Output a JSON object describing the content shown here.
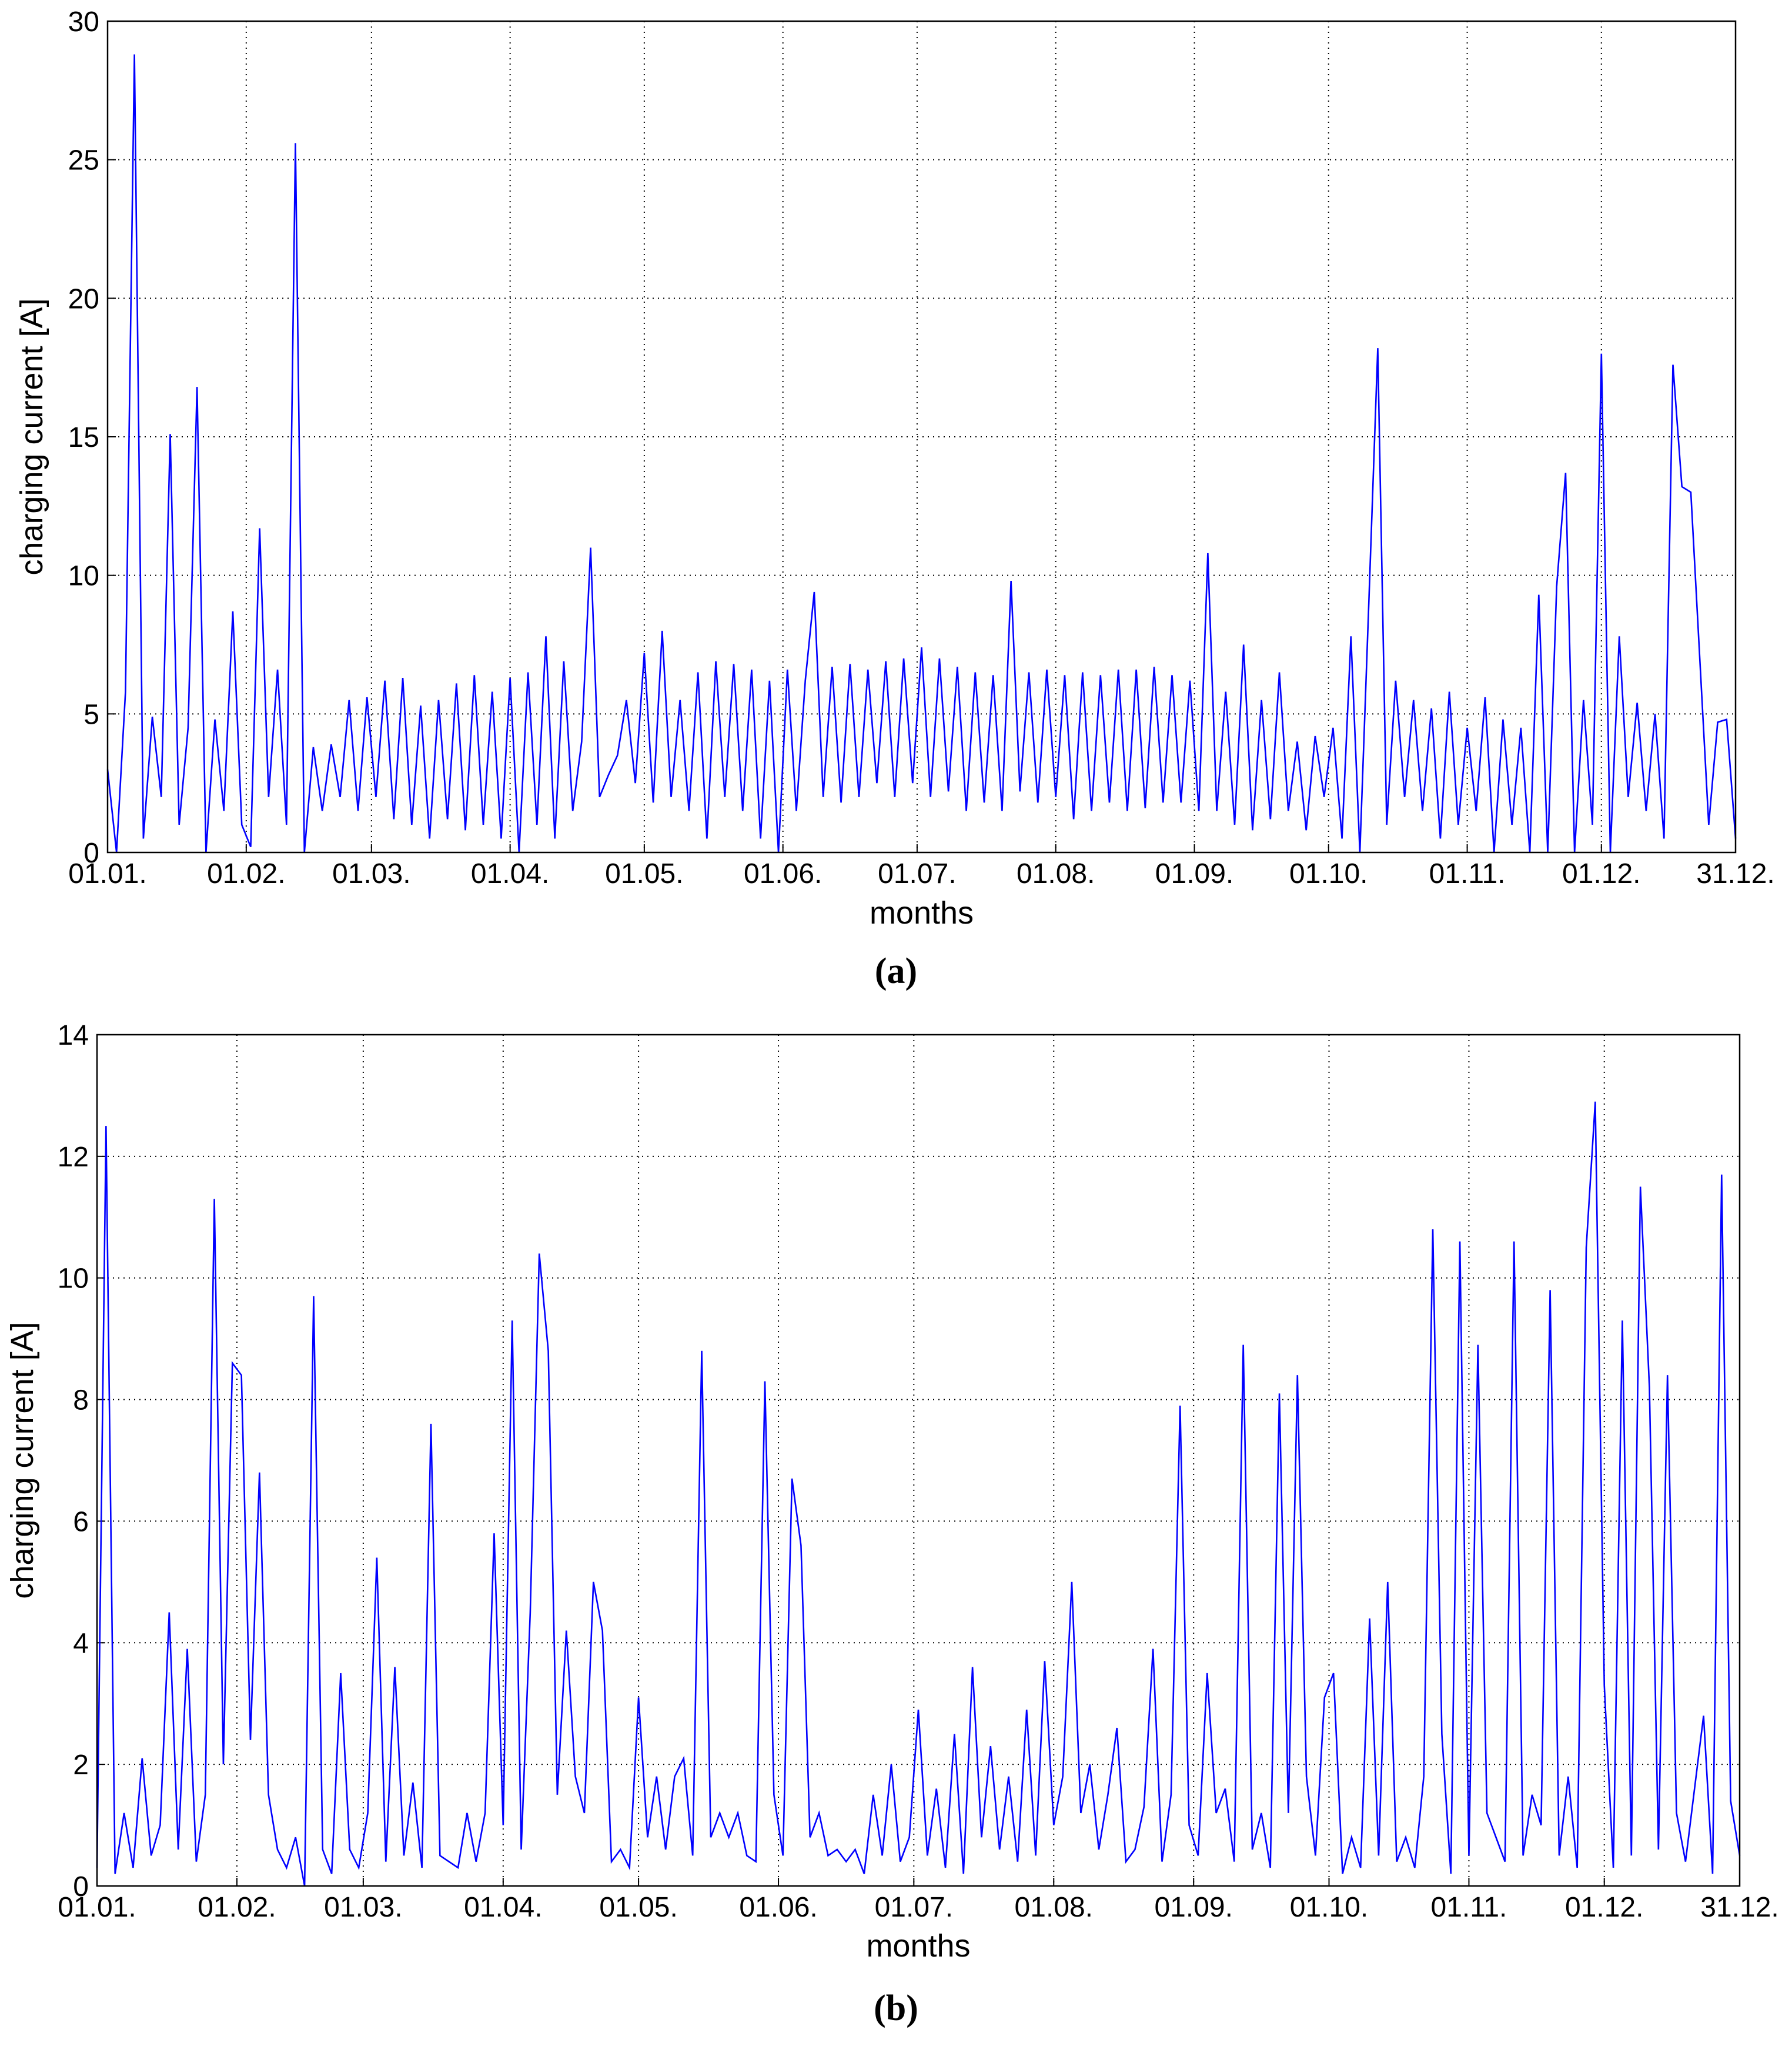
{
  "chart_data": [
    {
      "type": "line",
      "caption": "(a)",
      "xlabel": "months",
      "ylabel": "charging current [A]",
      "grid": true,
      "color": "#0000ff",
      "xlim": [
        0,
        364
      ],
      "xticks": [
        {
          "value": 0,
          "label": "01.01."
        },
        {
          "value": 31,
          "label": "01.02."
        },
        {
          "value": 59,
          "label": "01.03."
        },
        {
          "value": 90,
          "label": "01.04."
        },
        {
          "value": 120,
          "label": "01.05."
        },
        {
          "value": 151,
          "label": "01.06."
        },
        {
          "value": 181,
          "label": "01.07."
        },
        {
          "value": 212,
          "label": "01.08."
        },
        {
          "value": 243,
          "label": "01.09."
        },
        {
          "value": 273,
          "label": "01.10."
        },
        {
          "value": 304,
          "label": "01.11."
        },
        {
          "value": 334,
          "label": "01.12."
        },
        {
          "value": 364,
          "label": "31.12."
        }
      ],
      "ylim": [
        0,
        30
      ],
      "yticks": [
        0,
        5,
        10,
        15,
        20,
        25,
        30
      ],
      "x": [
        0,
        2,
        4,
        6,
        8,
        10,
        12,
        14,
        16,
        18,
        20,
        22,
        24,
        26,
        28,
        30,
        32,
        34,
        36,
        38,
        40,
        42,
        44,
        46,
        48,
        50,
        52,
        54,
        56,
        58,
        60,
        62,
        64,
        66,
        68,
        70,
        72,
        74,
        76,
        78,
        80,
        82,
        84,
        86,
        88,
        90,
        92,
        94,
        96,
        98,
        100,
        102,
        104,
        106,
        108,
        110,
        112,
        114,
        116,
        118,
        120,
        122,
        124,
        126,
        128,
        130,
        132,
        134,
        136,
        138,
        140,
        142,
        144,
        146,
        148,
        150,
        152,
        154,
        156,
        158,
        160,
        162,
        164,
        166,
        168,
        170,
        172,
        174,
        176,
        178,
        180,
        182,
        184,
        186,
        188,
        190,
        192,
        194,
        196,
        198,
        200,
        202,
        204,
        206,
        208,
        210,
        212,
        214,
        216,
        218,
        220,
        222,
        224,
        226,
        228,
        230,
        232,
        234,
        236,
        238,
        240,
        242,
        244,
        246,
        248,
        250,
        252,
        254,
        256,
        258,
        260,
        262,
        264,
        266,
        268,
        270,
        272,
        274,
        276,
        278,
        280,
        282,
        284,
        286,
        288,
        290,
        292,
        294,
        296,
        298,
        300,
        302,
        304,
        306,
        308,
        310,
        312,
        314,
        316,
        318,
        320,
        322,
        324,
        326,
        328,
        330,
        332,
        334,
        336,
        338,
        340,
        342,
        344,
        346,
        348,
        350,
        352,
        354,
        356,
        358,
        360,
        362,
        364
      ],
      "values": [
        3,
        0,
        5.8,
        28.8,
        0.5,
        4.9,
        2,
        15.1,
        1,
        4.5,
        16.8,
        0,
        4.8,
        1.5,
        8.7,
        1,
        0.2,
        11.7,
        2,
        6.6,
        1,
        25.6,
        0,
        3.8,
        1.5,
        3.9,
        2,
        5.5,
        1.5,
        5.6,
        2,
        6.2,
        1.2,
        6.3,
        1,
        5.3,
        0.5,
        5.5,
        1.2,
        6.1,
        0.8,
        6.4,
        1,
        5.8,
        0.5,
        6.3,
        0,
        6.5,
        1,
        7.8,
        0.5,
        6.9,
        1.5,
        4,
        11,
        2,
        2.8,
        3.5,
        5.5,
        2.5,
        7.2,
        1.8,
        8,
        2,
        5.5,
        1.5,
        6.5,
        0.5,
        6.9,
        2,
        6.8,
        1.5,
        6.6,
        0.5,
        6.2,
        0,
        6.6,
        1.5,
        6.2,
        9.4,
        2,
        6.7,
        1.8,
        6.8,
        2,
        6.6,
        2.5,
        6.9,
        2,
        7,
        2.5,
        7.4,
        2,
        7,
        2.2,
        6.7,
        1.5,
        6.5,
        1.8,
        6.4,
        1.5,
        9.8,
        2.2,
        6.5,
        1.8,
        6.6,
        2,
        6.4,
        1.2,
        6.5,
        1.5,
        6.4,
        1.8,
        6.6,
        1.5,
        6.6,
        1.6,
        6.7,
        1.8,
        6.4,
        1.8,
        6.2,
        1.5,
        10.8,
        1.5,
        5.8,
        1,
        7.5,
        0.8,
        5.5,
        1.2,
        6.5,
        1.5,
        4,
        0.8,
        4.2,
        2,
        4.5,
        0.5,
        7.8,
        0,
        9,
        18.2,
        1,
        6.2,
        2,
        5.5,
        1.5,
        5.2,
        0.5,
        5.8,
        1,
        4.5,
        1.5,
        5.6,
        0,
        4.8,
        1,
        4.5,
        0,
        9.3,
        0,
        9.6,
        13.7,
        0,
        5.5,
        1,
        18,
        0,
        7.8,
        2,
        5.4,
        1.5,
        5,
        0.5,
        17.6,
        13.2,
        13,
        7,
        1,
        4.7,
        4.8,
        0.5
      ]
    },
    {
      "type": "line",
      "caption": "(b)",
      "xlabel": "months",
      "ylabel": "charging current [A]",
      "grid": true,
      "color": "#0000ff",
      "xlim": [
        0,
        364
      ],
      "xticks": [
        {
          "value": 0,
          "label": "01.01."
        },
        {
          "value": 31,
          "label": "01.02."
        },
        {
          "value": 59,
          "label": "01.03."
        },
        {
          "value": 90,
          "label": "01.04."
        },
        {
          "value": 120,
          "label": "01.05."
        },
        {
          "value": 151,
          "label": "01.06."
        },
        {
          "value": 181,
          "label": "01.07."
        },
        {
          "value": 212,
          "label": "01.08."
        },
        {
          "value": 243,
          "label": "01.09."
        },
        {
          "value": 273,
          "label": "01.10."
        },
        {
          "value": 304,
          "label": "01.11."
        },
        {
          "value": 334,
          "label": "01.12."
        },
        {
          "value": 364,
          "label": "31.12."
        }
      ],
      "ylim": [
        0,
        14
      ],
      "yticks": [
        0,
        2,
        4,
        6,
        8,
        10,
        12,
        14
      ],
      "x": [
        0,
        2,
        4,
        6,
        8,
        10,
        12,
        14,
        16,
        18,
        20,
        22,
        24,
        26,
        28,
        30,
        32,
        34,
        36,
        38,
        40,
        42,
        44,
        46,
        48,
        50,
        52,
        54,
        56,
        58,
        60,
        62,
        64,
        66,
        68,
        70,
        72,
        74,
        76,
        78,
        80,
        82,
        84,
        86,
        88,
        90,
        92,
        94,
        96,
        98,
        100,
        102,
        104,
        106,
        108,
        110,
        112,
        114,
        116,
        118,
        120,
        122,
        124,
        126,
        128,
        130,
        132,
        134,
        136,
        138,
        140,
        142,
        144,
        146,
        148,
        150,
        152,
        154,
        156,
        158,
        160,
        162,
        164,
        166,
        168,
        170,
        172,
        174,
        176,
        178,
        180,
        182,
        184,
        186,
        188,
        190,
        192,
        194,
        196,
        198,
        200,
        202,
        204,
        206,
        208,
        210,
        212,
        214,
        216,
        218,
        220,
        222,
        224,
        226,
        228,
        230,
        232,
        234,
        236,
        238,
        240,
        242,
        244,
        246,
        248,
        250,
        252,
        254,
        256,
        258,
        260,
        262,
        264,
        266,
        268,
        270,
        272,
        274,
        276,
        278,
        280,
        282,
        284,
        286,
        288,
        290,
        292,
        294,
        296,
        298,
        300,
        302,
        304,
        306,
        308,
        310,
        312,
        314,
        316,
        318,
        320,
        322,
        324,
        326,
        328,
        330,
        332,
        334,
        336,
        338,
        340,
        342,
        344,
        346,
        348,
        350,
        352,
        354,
        356,
        358,
        360,
        362,
        364
      ],
      "values": [
        0.3,
        12.5,
        0.2,
        1.2,
        0.3,
        2.1,
        0.5,
        1,
        4.5,
        0.6,
        3.9,
        0.4,
        1.5,
        11.3,
        2,
        8.6,
        8.4,
        2.4,
        6.8,
        1.5,
        0.6,
        0.3,
        0.8,
        0,
        9.7,
        0.6,
        0.2,
        3.5,
        0.6,
        0.3,
        1.2,
        5.4,
        0.4,
        3.6,
        0.5,
        1.7,
        0.3,
        7.6,
        0.5,
        0.4,
        0.3,
        1.2,
        0.4,
        1.2,
        5.8,
        1,
        9.3,
        0.6,
        4.5,
        10.4,
        8.8,
        1.5,
        4.2,
        1.8,
        1.2,
        5,
        4.2,
        0.4,
        0.6,
        0.3,
        3.1,
        0.8,
        1.8,
        0.6,
        1.8,
        2.1,
        0.5,
        8.8,
        0.8,
        1.2,
        0.8,
        1.2,
        0.5,
        0.4,
        8.3,
        1.5,
        0.5,
        6.7,
        5.6,
        0.8,
        1.2,
        0.5,
        0.6,
        0.4,
        0.6,
        0.2,
        1.5,
        0.5,
        2,
        0.4,
        0.8,
        2.9,
        0.5,
        1.6,
        0.3,
        2.5,
        0.2,
        3.6,
        0.8,
        2.3,
        0.6,
        1.8,
        0.4,
        2.9,
        0.5,
        3.7,
        1,
        1.8,
        5,
        1.2,
        2,
        0.6,
        1.5,
        2.6,
        0.4,
        0.6,
        1.3,
        3.9,
        0.4,
        1.5,
        7.9,
        1,
        0.5,
        3.5,
        1.2,
        1.6,
        0.4,
        8.9,
        0.6,
        1.2,
        0.3,
        8.1,
        1.2,
        8.4,
        1.8,
        0.5,
        3.1,
        3.5,
        0.2,
        0.8,
        0.3,
        4.4,
        0.5,
        5,
        0.4,
        0.8,
        0.3,
        1.8,
        10.8,
        2.5,
        0.2,
        10.6,
        0.5,
        8.9,
        1.2,
        0.8,
        0.4,
        10.6,
        0.5,
        1.5,
        1,
        9.8,
        0.5,
        1.8,
        0.3,
        10.5,
        12.9,
        3.3,
        0.3,
        9.3,
        0.5,
        11.5,
        8.2,
        0.6,
        8.4,
        1.2,
        0.4,
        1.6,
        2.8,
        0.2,
        11.7,
        1.4,
        0.5
      ]
    }
  ]
}
